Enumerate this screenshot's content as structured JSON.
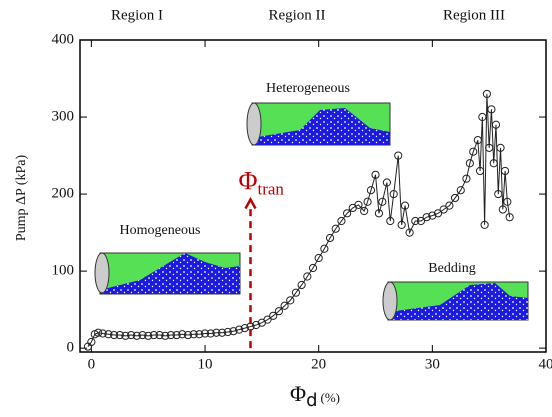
{
  "chart_data": {
    "type": "line",
    "regions": [
      "Region I",
      "Region II",
      "Region III"
    ],
    "y_label": "Pump ΔP (kPa)",
    "x_label": {
      "symbol": "Φ",
      "sub": "d",
      "unit": "(%)"
    },
    "annotations": [
      {
        "symbol": "Φ",
        "sub": "tran",
        "x": 14,
        "y_start": 0,
        "y_end": 193,
        "color": "#c00000"
      }
    ],
    "insets": [
      "Heterogeneous",
      "Homogeneous",
      "Bedding"
    ],
    "xlim": [
      -1,
      40
    ],
    "xticks": [
      0,
      10,
      20,
      30,
      40
    ],
    "ylim": [
      -5,
      400
    ],
    "yticks": [
      0,
      100,
      200,
      300,
      400
    ],
    "series": [
      {
        "color": "#222222",
        "x": [
          -0.3,
          0,
          0.3,
          0.6,
          1,
          1.5,
          2,
          2.5,
          3,
          3.5,
          4,
          4.5,
          5,
          5.5,
          6,
          6.5,
          7,
          7.5,
          8,
          8.5,
          9,
          9.5,
          10,
          10.5,
          11,
          11.5,
          12,
          12.5,
          13,
          13.5,
          14,
          14.5,
          15,
          15.5,
          16,
          16.5,
          17,
          17.5,
          18,
          18.5,
          19,
          19.5,
          20,
          20.5,
          21,
          21.5,
          22,
          22.5,
          23,
          23.5,
          24,
          24.3,
          24.6,
          25,
          25.3,
          25.6,
          26,
          26.3,
          26.6,
          27,
          27.3,
          27.6,
          28,
          28.5,
          29,
          29.5,
          30,
          30.5,
          31,
          31.5,
          32,
          32.5,
          33,
          33.3,
          33.6,
          34,
          34.2,
          34.4,
          34.6,
          34.8,
          35,
          35.2,
          35.4,
          35.6,
          35.8,
          36,
          36.2,
          36.4,
          36.6,
          36.8
        ],
        "values": [
          2,
          8,
          18,
          20,
          19,
          18,
          17,
          17,
          16,
          17,
          16,
          17,
          16,
          17,
          17,
          16,
          17,
          17,
          18,
          17,
          18,
          18,
          19,
          19,
          20,
          20,
          21,
          22,
          24,
          26,
          28,
          30,
          33,
          37,
          42,
          48,
          55,
          62,
          72,
          82,
          93,
          104,
          117,
          129,
          143,
          155,
          165,
          175,
          182,
          186,
          178,
          190,
          205,
          225,
          175,
          190,
          215,
          165,
          200,
          250,
          160,
          185,
          150,
          165,
          165,
          170,
          172,
          175,
          180,
          185,
          195,
          205,
          220,
          240,
          255,
          270,
          230,
          300,
          160,
          330,
          260,
          310,
          240,
          290,
          200,
          260,
          180,
          230,
          190,
          170
        ]
      }
    ]
  }
}
